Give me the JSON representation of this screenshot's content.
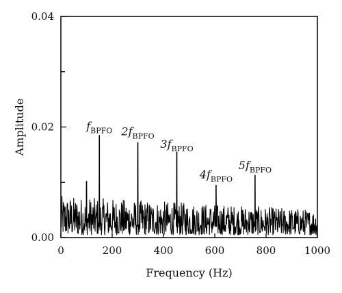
{
  "chart_data": {
    "type": "line",
    "xlabel": "Frequency (Hz)",
    "ylabel": "Amplitude",
    "xlim": [
      0,
      1000
    ],
    "ylim": [
      0,
      0.04
    ],
    "x_ticks": [
      0,
      200,
      400,
      600,
      800,
      1000
    ],
    "x_tick_labels": [
      "0",
      "200",
      "400",
      "600",
      "800",
      "1000"
    ],
    "y_ticks": [
      0,
      0.02,
      0.04
    ],
    "y_tick_labels": [
      "0.00",
      "0.02",
      "0.04"
    ],
    "y_minor_ticks": [
      0.01,
      0.03
    ],
    "grid": false,
    "series": [
      {
        "color": "#000000",
        "noise_floor_range": [
          0.0005,
          0.0075
        ],
        "peaks": [
          {
            "x": 100,
            "y": 0.0102
          },
          {
            "x": 150,
            "y": 0.0185
          },
          {
            "x": 300,
            "y": 0.0172
          },
          {
            "x": 452,
            "y": 0.0155
          },
          {
            "x": 605,
            "y": 0.0095
          },
          {
            "x": 757,
            "y": 0.0113
          }
        ]
      }
    ],
    "annotations": [
      {
        "coef": "",
        "sub": "BPFO",
        "x": 150,
        "y": 0.0195
      },
      {
        "coef": "2",
        "sub": "BPFO",
        "x": 300,
        "y": 0.0185
      },
      {
        "coef": "3",
        "sub": "BPFO",
        "x": 452,
        "y": 0.0162
      },
      {
        "coef": "4",
        "sub": "BPFO",
        "x": 605,
        "y": 0.0107
      },
      {
        "coef": "5",
        "sub": "BPFO",
        "x": 757,
        "y": 0.0124
      }
    ]
  }
}
